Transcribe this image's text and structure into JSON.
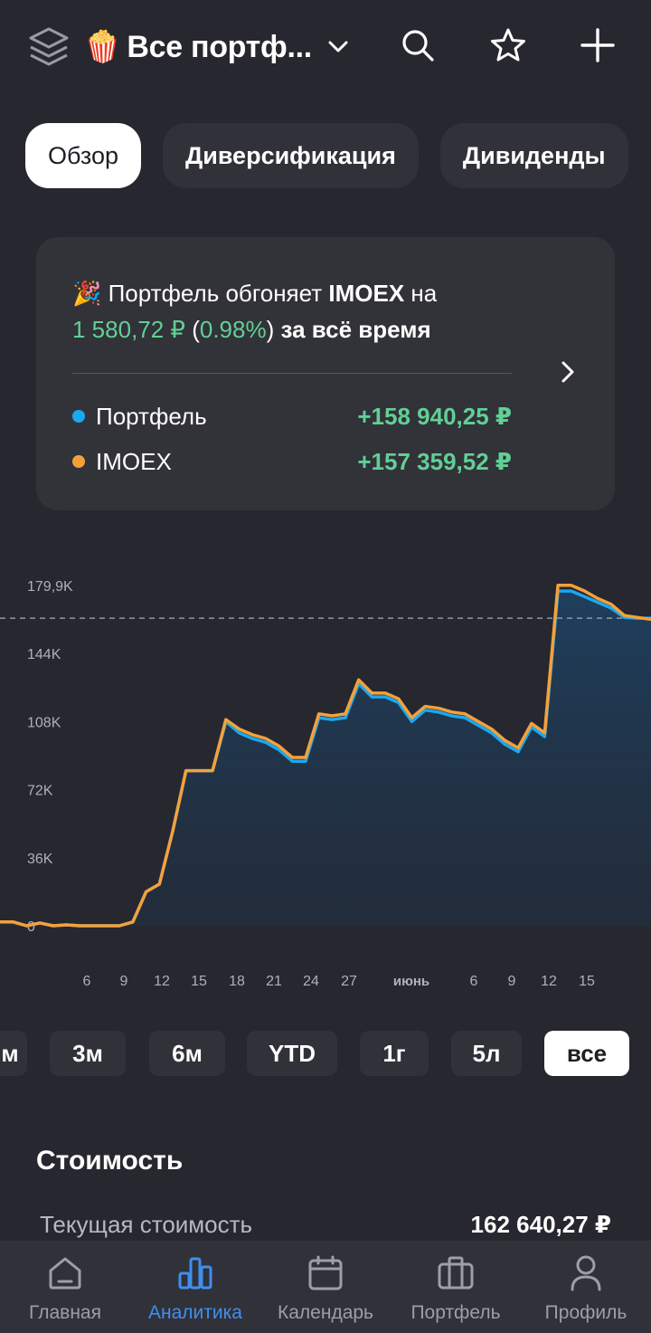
{
  "header": {
    "emoji": "🍿",
    "title": "Все портф...",
    "layers_icon": "layers-icon",
    "dropdown_icon": "chevron-down-icon",
    "actions": [
      "search-icon",
      "star-icon",
      "plus-icon"
    ]
  },
  "tabs": [
    {
      "label": "Обзор",
      "active": true
    },
    {
      "label": "Диверсификация",
      "active": false
    },
    {
      "label": "Дивиденды",
      "active": false
    }
  ],
  "comparison": {
    "emoji": "🎉",
    "text_before": " Портфель обгоняет ",
    "benchmark": "IMOEX",
    "text_on": " на",
    "diff_amount": "1 580,72 ₽",
    "diff_open": " (",
    "diff_percent": "0.98%",
    "diff_close": ")",
    "period_text": " за всё время",
    "rows": [
      {
        "name": "Портфель",
        "value": "+158 940,25 ₽",
        "color": "#1ba8f0"
      },
      {
        "name": "IMOEX",
        "value": "+157 359,52 ₽",
        "color": "#f4a13b"
      }
    ]
  },
  "chart_data": {
    "type": "line",
    "y_ticks": [
      "179,9K",
      "144K",
      "108K",
      "72K",
      "36K",
      "0"
    ],
    "y_tick_values": [
      179900,
      144000,
      108000,
      72000,
      36000,
      0
    ],
    "x_ticks": [
      "6",
      "9",
      "12",
      "15",
      "18",
      "21",
      "24",
      "27",
      "июнь",
      "6",
      "9",
      "12",
      "15"
    ],
    "ylim": [
      0,
      179900
    ],
    "reference_line": 162640,
    "series": [
      {
        "name": "Портфель",
        "color": "#1ba8f0",
        "values": [
          2000,
          2000,
          0,
          1500,
          0,
          500,
          0,
          0,
          0,
          0,
          2000,
          18000,
          22000,
          50000,
          82000,
          82000,
          82000,
          108000,
          102000,
          99000,
          97000,
          93000,
          87000,
          87000,
          110000,
          109000,
          110000,
          128000,
          121000,
          121000,
          118000,
          108000,
          114000,
          113000,
          111000,
          110000,
          106000,
          102000,
          96000,
          92000,
          105000,
          100000,
          177000,
          177000,
          174000,
          171000,
          168000,
          163000,
          162640,
          162640
        ]
      },
      {
        "name": "IMOEX",
        "color": "#f4a13b",
        "values": [
          2000,
          2000,
          0,
          1500,
          0,
          500,
          0,
          0,
          0,
          0,
          2000,
          18000,
          22000,
          50000,
          82000,
          82000,
          82000,
          109000,
          104000,
          101000,
          99000,
          95000,
          89000,
          89000,
          112000,
          111000,
          112000,
          130000,
          123000,
          123000,
          120000,
          110000,
          116000,
          115000,
          113000,
          112000,
          108000,
          104000,
          98000,
          94000,
          107000,
          102000,
          180000,
          180000,
          177000,
          173000,
          170000,
          164000,
          163000,
          162000
        ]
      }
    ]
  },
  "periods": [
    {
      "label": "м",
      "active": false
    },
    {
      "label": "3м",
      "active": false
    },
    {
      "label": "6м",
      "active": false
    },
    {
      "label": "YTD",
      "active": false
    },
    {
      "label": "1г",
      "active": false
    },
    {
      "label": "5л",
      "active": false
    },
    {
      "label": "все",
      "active": true
    }
  ],
  "cost": {
    "title": "Стоимость",
    "current_label": "Текущая стоимость",
    "current_value": "162 640,27 ₽"
  },
  "nav": [
    {
      "label": "Главная",
      "icon": "home-icon",
      "active": false
    },
    {
      "label": "Аналитика",
      "icon": "analytics-icon",
      "active": true
    },
    {
      "label": "Календарь",
      "icon": "calendar-icon",
      "active": false
    },
    {
      "label": "Портфель",
      "icon": "briefcase-icon",
      "active": false
    },
    {
      "label": "Профиль",
      "icon": "profile-icon",
      "active": false
    }
  ],
  "colors": {
    "background": "#27272f",
    "positive": "#61d095",
    "accent": "#3f8fef"
  }
}
